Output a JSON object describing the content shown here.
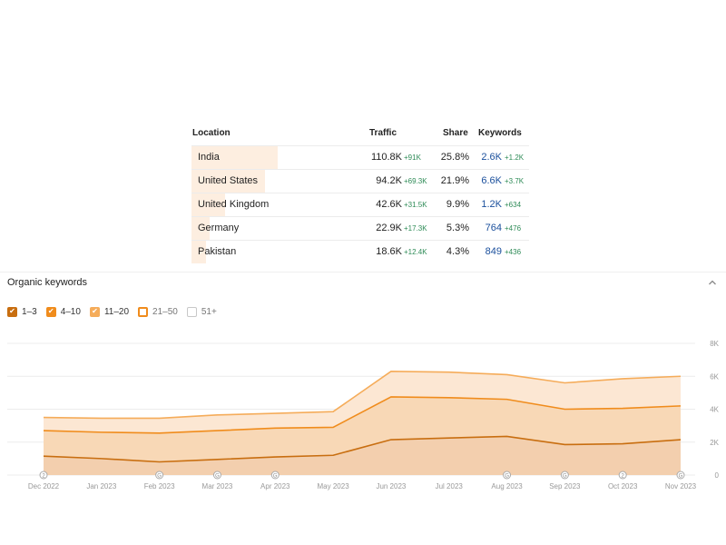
{
  "location_table": {
    "headers": {
      "location": "Location",
      "traffic": "Traffic",
      "share": "Share",
      "keywords": "Keywords"
    },
    "rows": [
      {
        "location": "India",
        "traffic": "110.8K",
        "traffic_delta": "+91K",
        "share": "25.8%",
        "keywords": "2.6K",
        "keywords_delta": "+1.2K",
        "share_fraction": 0.258
      },
      {
        "location": "United States",
        "traffic": "94.2K",
        "traffic_delta": "+69.3K",
        "share": "21.9%",
        "keywords": "6.6K",
        "keywords_delta": "+3.7K",
        "share_fraction": 0.219
      },
      {
        "location": "United Kingdom",
        "traffic": "42.6K",
        "traffic_delta": "+31.5K",
        "share": "9.9%",
        "keywords": "1.2K",
        "keywords_delta": "+634",
        "share_fraction": 0.099
      },
      {
        "location": "Germany",
        "traffic": "22.9K",
        "traffic_delta": "+17.3K",
        "share": "5.3%",
        "keywords": "764",
        "keywords_delta": "+476",
        "share_fraction": 0.053
      },
      {
        "location": "Pakistan",
        "traffic": "18.6K",
        "traffic_delta": "+12.4K",
        "share": "4.3%",
        "keywords": "849",
        "keywords_delta": "+436",
        "share_fraction": 0.043
      }
    ]
  },
  "organic_keywords": {
    "title": "Organic keywords",
    "collapse_icon": "chevron-up-icon",
    "legend": [
      {
        "label": "1–3",
        "checked": true,
        "color": "#c86e10",
        "style": "filled"
      },
      {
        "label": "4–10",
        "checked": true,
        "color": "#f08c1c",
        "style": "filled"
      },
      {
        "label": "11–20",
        "checked": true,
        "color": "#f5ac5a",
        "style": "filled"
      },
      {
        "label": "21–50",
        "checked": false,
        "color": "#f08c1c",
        "style": "outline"
      },
      {
        "label": "51+",
        "checked": false,
        "color": "#c8c8c8",
        "style": "empty"
      }
    ]
  },
  "chart_data": {
    "type": "area",
    "stacked": true,
    "x": [
      "Dec 2022",
      "Jan 2023",
      "Feb 2023",
      "Mar 2023",
      "Apr 2023",
      "May 2023",
      "Jun 2023",
      "Jul 2023",
      "Aug 2023",
      "Sep 2023",
      "Oct 2023",
      "Nov 2023"
    ],
    "series": [
      {
        "name": "1–3",
        "color": "#c86e10",
        "fill": "#f3cfae",
        "values": [
          1150,
          1000,
          800,
          950,
          1100,
          1200,
          2150,
          2250,
          2350,
          1850,
          1900,
          2150
        ]
      },
      {
        "name": "4–10",
        "color": "#f08c1c",
        "fill": "#f8d8b6",
        "values": [
          1550,
          1600,
          1750,
          1750,
          1750,
          1700,
          2600,
          2450,
          2250,
          2150,
          2150,
          2050
        ]
      },
      {
        "name": "11–20",
        "color": "#f5ac5a",
        "fill": "#fce7d3",
        "values": [
          800,
          850,
          900,
          950,
          900,
          950,
          1550,
          1550,
          1500,
          1600,
          1800,
          1800
        ]
      }
    ],
    "y_ticks": [
      "8K",
      "6K",
      "4K",
      "2K",
      "0"
    ],
    "ylim": [
      0,
      8000
    ],
    "annotation_markers": [
      {
        "x_index": 0,
        "label": "2"
      },
      {
        "x_index": 2,
        "label": "G"
      },
      {
        "x_index": 3,
        "label": "G"
      },
      {
        "x_index": 4,
        "label": "G"
      },
      {
        "x_index": 8,
        "label": "G"
      },
      {
        "x_index": 9,
        "label": "G"
      },
      {
        "x_index": 10,
        "label": "2"
      },
      {
        "x_index": 11,
        "label": "G"
      }
    ],
    "grid": true
  }
}
